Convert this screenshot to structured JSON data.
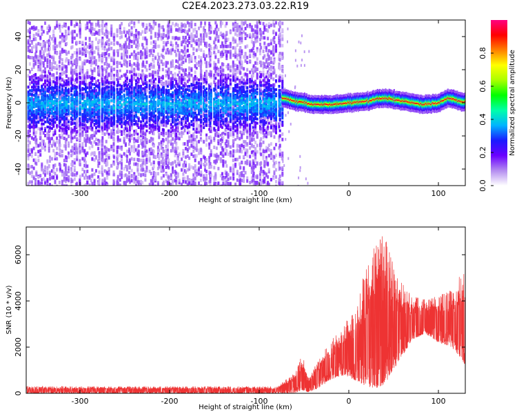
{
  "title": "C2E4.2023.273.03.22.R19",
  "chart_data": [
    {
      "type": "heatmap",
      "xlabel": "Height of straight line (km)",
      "ylabel": "Frequency (Hz)",
      "xlim": [
        -360,
        130
      ],
      "ylim": [
        -50,
        50
      ],
      "xticks": [
        -300,
        -200,
        -100,
        0,
        100
      ],
      "yticks": [
        -40,
        -20,
        0,
        20,
        40
      ],
      "colorbar": {
        "label": "Normalized spectral amplitude",
        "range": [
          0,
          1
        ],
        "ticks": [
          "0.0",
          "0.2",
          "0.4",
          "0.6",
          "0.8"
        ],
        "colors": [
          "#ffffff",
          "#b48cf0",
          "#6a00ff",
          "#1a1aff",
          "#00b4ff",
          "#00ffaa",
          "#00ff00",
          "#aaff00",
          "#ffff00",
          "#ff8000",
          "#ff0000",
          "#ff0080"
        ]
      },
      "noise_floor_band": {
        "x_range": [
          -360,
          -75
        ],
        "center_hz": 0,
        "half_width_hz": 10
      },
      "signal_trace": [
        {
          "x": -75,
          "y": 3
        },
        {
          "x": -60,
          "y": 1
        },
        {
          "x": -40,
          "y": -1
        },
        {
          "x": -20,
          "y": -1
        },
        {
          "x": 0,
          "y": 0
        },
        {
          "x": 20,
          "y": 1
        },
        {
          "x": 40,
          "y": 3
        },
        {
          "x": 60,
          "y": 1
        },
        {
          "x": 80,
          "y": -1
        },
        {
          "x": 100,
          "y": 0
        },
        {
          "x": 110,
          "y": 3
        },
        {
          "x": 130,
          "y": 0
        }
      ]
    },
    {
      "type": "line",
      "xlabel": "Height of straight line (km)",
      "ylabel": "SNR (10 * v/v)",
      "xlim": [
        -360,
        130
      ],
      "ylim": [
        0,
        7200
      ],
      "xticks": [
        -300,
        -200,
        -100,
        0,
        100
      ],
      "yticks": [
        0,
        2000,
        4000,
        6000
      ],
      "series": [
        {
          "color": "#ee3333",
          "envelope": [
            {
              "x": -360,
              "low": 0,
              "high": 300
            },
            {
              "x": -80,
              "low": 0,
              "high": 300
            },
            {
              "x": -60,
              "low": 0,
              "high": 900
            },
            {
              "x": -52,
              "low": 150,
              "high": 1700
            },
            {
              "x": -45,
              "low": 50,
              "high": 700
            },
            {
              "x": -35,
              "low": 200,
              "high": 1500
            },
            {
              "x": -20,
              "low": 600,
              "high": 2300
            },
            {
              "x": -5,
              "low": 800,
              "high": 3000
            },
            {
              "x": 10,
              "low": 500,
              "high": 3800
            },
            {
              "x": 20,
              "low": 300,
              "high": 5800
            },
            {
              "x": 30,
              "low": 200,
              "high": 6500
            },
            {
              "x": 40,
              "low": 400,
              "high": 7100
            },
            {
              "x": 50,
              "low": 1000,
              "high": 5500
            },
            {
              "x": 60,
              "low": 1600,
              "high": 4800
            },
            {
              "x": 70,
              "low": 2300,
              "high": 4300
            },
            {
              "x": 85,
              "low": 2600,
              "high": 4100
            },
            {
              "x": 100,
              "low": 2200,
              "high": 4200
            },
            {
              "x": 115,
              "low": 2000,
              "high": 4600
            },
            {
              "x": 130,
              "low": 1200,
              "high": 5500
            }
          ]
        }
      ]
    }
  ]
}
